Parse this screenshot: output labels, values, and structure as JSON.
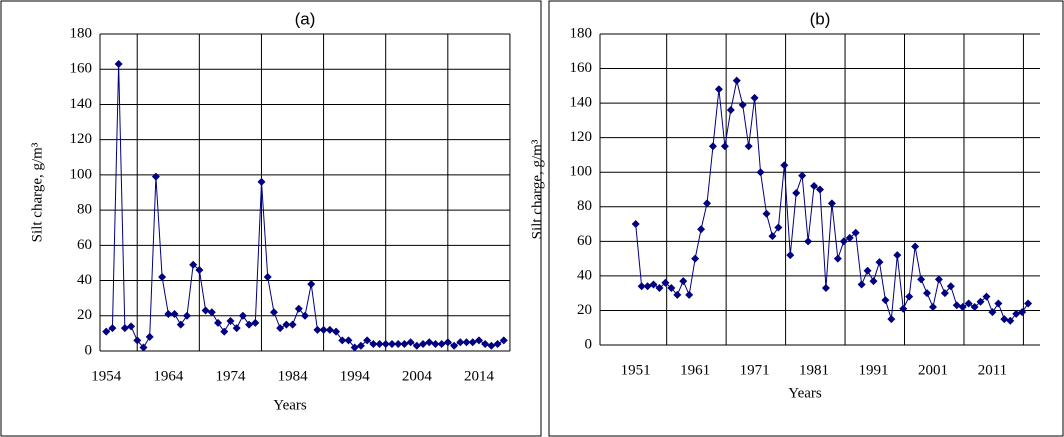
{
  "chart_data": [
    {
      "type": "line",
      "title": "(a)",
      "xlabel": "Years",
      "ylabel": "Silt charge, g/m³",
      "x": [
        1954,
        1955,
        1956,
        1957,
        1958,
        1959,
        1960,
        1961,
        1962,
        1963,
        1964,
        1965,
        1966,
        1967,
        1968,
        1969,
        1970,
        1971,
        1972,
        1973,
        1974,
        1975,
        1976,
        1977,
        1978,
        1979,
        1980,
        1981,
        1982,
        1983,
        1984,
        1985,
        1986,
        1987,
        1988,
        1989,
        1990,
        1991,
        1992,
        1993,
        1994,
        1995,
        1996,
        1997,
        1998,
        1999,
        2000,
        2001,
        2002,
        2003,
        2004,
        2005,
        2006,
        2007,
        2008,
        2009,
        2010,
        2011,
        2012,
        2013,
        2014,
        2015,
        2016,
        2017,
        2018
      ],
      "series": [
        {
          "name": "Silt charge",
          "color": "#000080",
          "values": [
            11,
            13,
            163,
            13,
            14,
            6,
            2,
            8,
            99,
            42,
            21,
            21,
            15,
            20,
            49,
            46,
            23,
            22,
            16,
            11,
            17,
            13,
            20,
            15,
            16,
            96,
            42,
            22,
            13,
            15,
            15,
            24,
            20,
            38,
            12,
            12,
            12,
            11,
            6,
            6,
            2,
            3,
            6,
            4,
            4,
            4,
            4,
            4,
            4,
            5,
            3,
            4,
            5,
            4,
            4,
            5,
            3,
            5,
            5,
            5,
            6,
            4,
            3,
            4,
            6
          ]
        }
      ],
      "xlim": [
        1953,
        2019
      ],
      "xticks": [
        1954,
        1964,
        1974,
        1984,
        1994,
        2004,
        2014
      ],
      "ylim": [
        0,
        180
      ],
      "yticks": [
        0,
        20,
        40,
        60,
        80,
        100,
        120,
        140,
        160,
        180
      ],
      "grid": true
    },
    {
      "type": "line",
      "title": "(b)",
      "xlabel": "Years",
      "ylabel": "Silt charge, g/m³",
      "x": [
        1951,
        1952,
        1953,
        1954,
        1955,
        1956,
        1957,
        1958,
        1959,
        1960,
        1961,
        1962,
        1963,
        1964,
        1965,
        1966,
        1967,
        1968,
        1969,
        1970,
        1971,
        1972,
        1973,
        1974,
        1975,
        1976,
        1977,
        1978,
        1979,
        1980,
        1981,
        1982,
        1983,
        1984,
        1985,
        1986,
        1987,
        1988,
        1989,
        1990,
        1991,
        1992,
        1993,
        1994,
        1995,
        1996,
        1997,
        1998,
        1999,
        2000,
        2001,
        2002,
        2003,
        2004,
        2005,
        2006,
        2007,
        2008,
        2009,
        2010,
        2011,
        2012,
        2013,
        2014,
        2015,
        2016,
        2017
      ],
      "series": [
        {
          "name": "Silt charge",
          "color": "#000080",
          "values": [
            70,
            34,
            34,
            35,
            33,
            36,
            33,
            29,
            37,
            29,
            50,
            67,
            82,
            115,
            148,
            115,
            136,
            153,
            139,
            115,
            143,
            100,
            76,
            63,
            68,
            104,
            52,
            88,
            98,
            60,
            92,
            90,
            33,
            82,
            50,
            60,
            62,
            65,
            35,
            43,
            37,
            48,
            26,
            15,
            52,
            21,
            28,
            57,
            38,
            30,
            22,
            38,
            30,
            34,
            23,
            22,
            24,
            22,
            25,
            28,
            19,
            24,
            15,
            14,
            18,
            19,
            24
          ]
        }
      ],
      "xlim": [
        1945,
        2019
      ],
      "xticks": [
        1951,
        1961,
        1971,
        1981,
        1991,
        2001,
        2011
      ],
      "ylim": [
        0,
        180
      ],
      "yticks": [
        0,
        20,
        40,
        60,
        80,
        100,
        120,
        140,
        160,
        180
      ],
      "grid": true
    }
  ]
}
